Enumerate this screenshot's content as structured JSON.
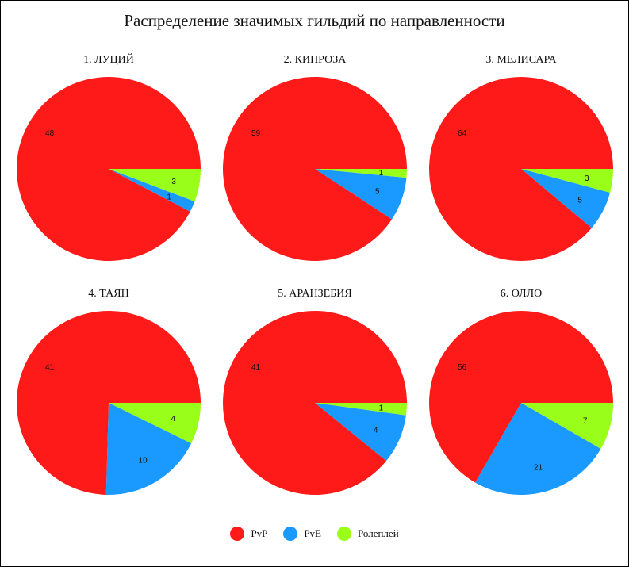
{
  "chart_data": {
    "type": "pie",
    "title": "Распределение значимых гильдий по направленности",
    "legend": {
      "placement": "bottom",
      "entries": [
        {
          "name": "PvP",
          "color": "#ff1a1a"
        },
        {
          "name": "PvE",
          "color": "#1a9aff"
        },
        {
          "name": "Ролеплей",
          "color": "#99ff1a"
        }
      ]
    },
    "pies": [
      {
        "title": "1. ЛУЦИЙ",
        "values": [
          48,
          1,
          3
        ]
      },
      {
        "title": "2. КИПРОЗА",
        "values": [
          59,
          5,
          1
        ]
      },
      {
        "title": "3. МЕЛИСАРА",
        "values": [
          64,
          5,
          3
        ]
      },
      {
        "title": "4. ТАЯН",
        "values": [
          41,
          10,
          4
        ]
      },
      {
        "title": "5. АРАНЗЕБИЯ",
        "values": [
          41,
          4,
          1
        ]
      },
      {
        "title": "6. ОЛЛО",
        "values": [
          56,
          21,
          7
        ]
      }
    ]
  }
}
